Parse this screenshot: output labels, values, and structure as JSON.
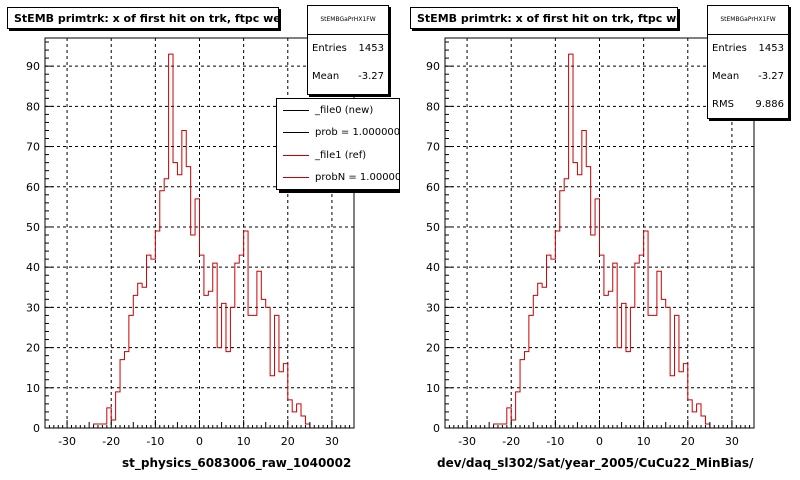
{
  "chart_data": [
    {
      "type": "histogram",
      "title": "StEMB primtrk: x of first hit on trk, ftpc west",
      "xlabel": "st_physics_6083006_raw_1040002",
      "ylabel": "",
      "xlim": [
        -35,
        35
      ],
      "ylim": [
        0,
        97
      ],
      "x_ticks": [
        -30,
        -20,
        -10,
        0,
        10,
        20,
        30
      ],
      "y_ticks": [
        0,
        10,
        20,
        30,
        40,
        50,
        60,
        70,
        80,
        90
      ],
      "grid": true,
      "bin_width": 1,
      "bin_start": -35,
      "series": [
        {
          "name": "_file1 (ref)",
          "color": "#cc0000",
          "values": [
            0,
            0,
            0,
            0,
            0,
            0,
            0,
            0,
            0,
            0,
            0,
            1,
            1,
            1,
            5,
            2,
            9,
            17,
            19,
            28,
            33,
            36,
            35,
            43,
            42,
            49,
            59,
            62,
            93,
            66,
            63,
            74,
            65,
            48,
            57,
            43,
            33,
            34,
            41,
            20,
            31,
            19,
            30,
            41,
            43,
            49,
            28,
            28,
            39,
            32,
            30,
            13,
            28,
            14,
            16,
            7,
            4,
            6,
            3,
            1,
            0,
            0,
            0,
            0,
            0,
            0,
            0,
            0,
            0,
            0
          ]
        }
      ],
      "stats": {
        "name": "StEMBGaPrHX1FW",
        "entries": "1453",
        "mean": "-3.27",
        "rms": ""
      },
      "legend": [
        {
          "label": "_file0 (new)",
          "color": "#000000"
        },
        {
          "label": "prob = 1.000000",
          "color": "#000000"
        },
        {
          "label": "_file1 (ref)",
          "color": "#cc0000"
        },
        {
          "label": "probN = 1.000000",
          "color": "#cc0000"
        }
      ]
    },
    {
      "type": "histogram",
      "title": "StEMB primtrk: x of first hit on trk, ftpc west",
      "xlabel": "dev/daq_sl302/Sat/year_2005/CuCu22_MinBias/",
      "ylabel": "",
      "xlim": [
        -35,
        35
      ],
      "ylim": [
        0,
        97
      ],
      "x_ticks": [
        -30,
        -20,
        -10,
        0,
        10,
        20,
        30
      ],
      "y_ticks": [
        0,
        10,
        20,
        30,
        40,
        50,
        60,
        70,
        80,
        90
      ],
      "grid": true,
      "bin_width": 1,
      "bin_start": -35,
      "series": [
        {
          "name": "",
          "color": "#cc0000",
          "values": [
            0,
            0,
            0,
            0,
            0,
            0,
            0,
            0,
            0,
            0,
            0,
            1,
            1,
            1,
            5,
            2,
            9,
            17,
            19,
            28,
            33,
            36,
            35,
            43,
            42,
            49,
            59,
            62,
            93,
            66,
            63,
            74,
            65,
            48,
            57,
            43,
            33,
            34,
            41,
            20,
            31,
            19,
            30,
            41,
            43,
            49,
            28,
            28,
            39,
            32,
            30,
            13,
            28,
            14,
            16,
            7,
            4,
            6,
            3,
            1,
            0,
            0,
            0,
            0,
            0,
            0,
            0,
            0,
            0,
            0
          ]
        }
      ],
      "stats": {
        "name": "StEMBGaPrHX1FW",
        "entries": "1453",
        "mean": "-3.27",
        "rms": "9.886"
      },
      "legend": []
    }
  ]
}
